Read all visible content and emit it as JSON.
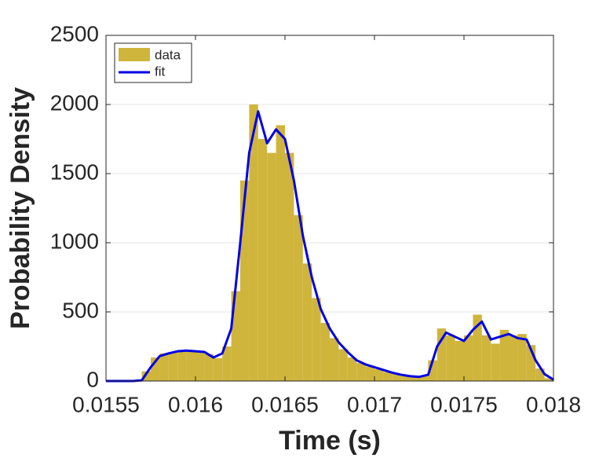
{
  "chart_data": {
    "type": "histogram",
    "xlabel": "Time (s)",
    "ylabel": "Probability Density",
    "bins": [
      0.0157,
      0.01575,
      0.0158,
      0.01585,
      0.0159,
      0.01595,
      0.016,
      0.01605,
      0.0161,
      0.01615,
      0.0162,
      0.01625,
      0.0163,
      0.01635,
      0.0164,
      0.01645,
      0.0165,
      0.01655,
      0.0166,
      0.01665,
      0.0167,
      0.01675,
      0.0168,
      0.01685,
      0.0169,
      0.01695,
      0.017,
      0.01705,
      0.0171,
      0.01715,
      0.0172,
      0.01725,
      0.0173,
      0.01735,
      0.0174,
      0.01745,
      0.0175,
      0.01755,
      0.0176,
      0.01765,
      0.0177,
      0.01775,
      0.0178,
      0.01785,
      0.0179,
      0.01795,
      0.018
    ],
    "values": [
      70,
      170,
      200,
      205,
      220,
      220,
      210,
      195,
      165,
      250,
      650,
      1450,
      2000,
      1750,
      1650,
      1850,
      1650,
      1200,
      850,
      600,
      420,
      310,
      230,
      170,
      130,
      105,
      85,
      65,
      50,
      40,
      30,
      35,
      150,
      380,
      330,
      290,
      330,
      480,
      330,
      270,
      370,
      330,
      340,
      260,
      90,
      20
    ],
    "name": "data",
    "color": "#cfb53b",
    "line": {
      "name": "fit",
      "color": "#0000e6",
      "x": [
        0.0155,
        0.01555,
        0.0156,
        0.01565,
        0.0157,
        0.01575,
        0.0158,
        0.01585,
        0.0159,
        0.01595,
        0.016,
        0.01605,
        0.0161,
        0.01615,
        0.0162,
        0.01625,
        0.0163,
        0.01635,
        0.0164,
        0.01645,
        0.0165,
        0.01655,
        0.0166,
        0.01665,
        0.0167,
        0.01675,
        0.0168,
        0.01685,
        0.0169,
        0.01695,
        0.017,
        0.01705,
        0.0171,
        0.01715,
        0.0172,
        0.01725,
        0.0173,
        0.01735,
        0.0174,
        0.01745,
        0.0175,
        0.01755,
        0.0176,
        0.01765,
        0.0177,
        0.01775,
        0.0178,
        0.01785,
        0.0179,
        0.01795,
        0.018
      ],
      "values": [
        0,
        0,
        0,
        0,
        5,
        100,
        180,
        200,
        215,
        220,
        215,
        210,
        170,
        200,
        380,
        1000,
        1650,
        1950,
        1720,
        1820,
        1750,
        1450,
        1050,
        750,
        520,
        380,
        280,
        210,
        150,
        120,
        100,
        80,
        60,
        45,
        35,
        30,
        45,
        250,
        350,
        320,
        290,
        370,
        430,
        300,
        320,
        340,
        310,
        300,
        150,
        50,
        10
      ]
    },
    "xlim": [
      0.0155,
      0.018
    ],
    "xticks": [
      0.0155,
      0.016,
      0.0165,
      0.017,
      0.0175,
      0.018
    ],
    "ylim": [
      0,
      2500
    ],
    "yticks": [
      0,
      500,
      1000,
      1500,
      2000,
      2500
    ],
    "grid": "y",
    "legend": "upper-left"
  }
}
